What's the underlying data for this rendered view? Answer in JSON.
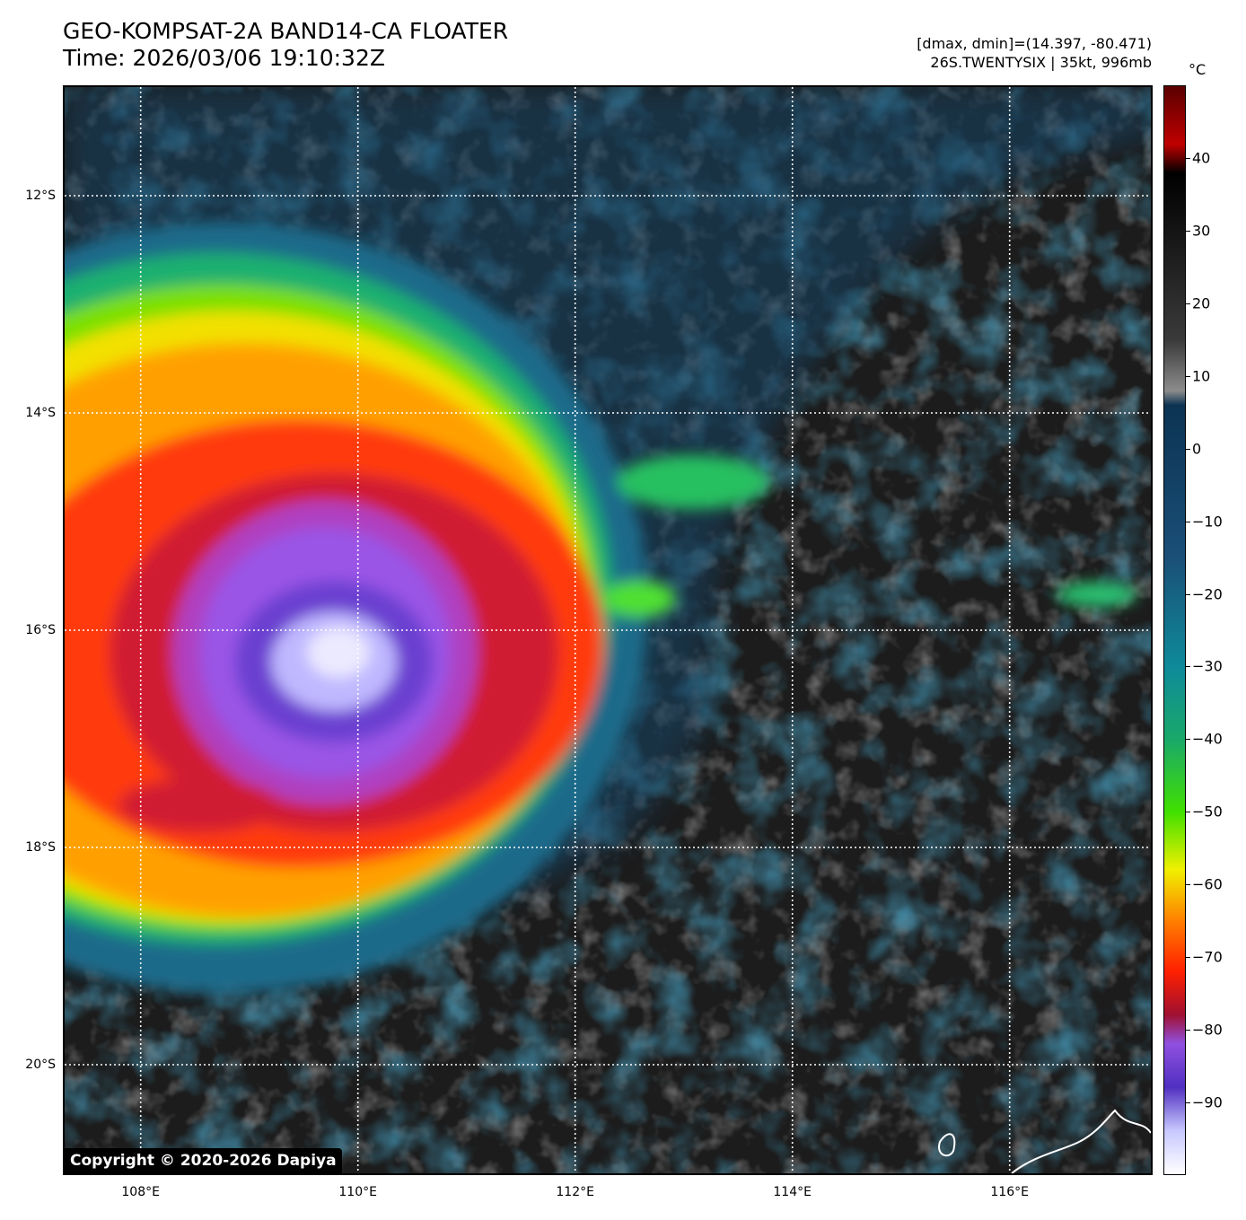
{
  "header": {
    "title_line1": "GEO-KOMPSAT-2A BAND14-CA FLOATER",
    "title_line2": "Time: 2026/03/06 19:10:32Z",
    "meta_line1": "[dmax, dmin]=(14.397, -80.471)",
    "meta_line2": "26S.TWENTYSIX | 35kt, 996mb"
  },
  "map": {
    "copyright": "Copyright © 2020-2026 Dapiya",
    "lat_labels": [
      "12°S",
      "14°S",
      "16°S",
      "18°S",
      "20°S"
    ],
    "lat_values": [
      -12,
      -14,
      -16,
      -18,
      -20
    ],
    "lon_labels": [
      "108°E",
      "110°E",
      "112°E",
      "114°E",
      "116°E"
    ],
    "lon_values": [
      108,
      110,
      112,
      114,
      116
    ],
    "lon_range": [
      107.3,
      117.3
    ],
    "lat_range": [
      -11.0,
      -21.0
    ],
    "storm_center": {
      "lon": 110.0,
      "lat": -16.2
    }
  },
  "colorbar": {
    "unit": "°C",
    "ticks": [
      "40",
      "30",
      "20",
      "10",
      "0",
      "−10",
      "−20",
      "−30",
      "−40",
      "−50",
      "−60",
      "−70",
      "−80",
      "−90"
    ],
    "tick_values": [
      40,
      30,
      20,
      10,
      0,
      -10,
      -20,
      -30,
      -40,
      -50,
      -60,
      -70,
      -80,
      -90
    ],
    "range": [
      50,
      -100
    ],
    "stops": [
      {
        "v": 50,
        "c": "#5a0000"
      },
      {
        "v": 42,
        "c": "#c00000"
      },
      {
        "v": 38,
        "c": "#000000"
      },
      {
        "v": 15,
        "c": "#3a3a3a"
      },
      {
        "v": 8,
        "c": "#8c8c8c"
      },
      {
        "v": 6,
        "c": "#0c3352"
      },
      {
        "v": -15,
        "c": "#1a4f78"
      },
      {
        "v": -30,
        "c": "#0e8a9a"
      },
      {
        "v": -40,
        "c": "#1aa86a"
      },
      {
        "v": -50,
        "c": "#40e000"
      },
      {
        "v": -58,
        "c": "#f0f000"
      },
      {
        "v": -65,
        "c": "#ff8000"
      },
      {
        "v": -72,
        "c": "#ff2000"
      },
      {
        "v": -78,
        "c": "#a01030"
      },
      {
        "v": -82,
        "c": "#9050e0"
      },
      {
        "v": -88,
        "c": "#5030c0"
      },
      {
        "v": -94,
        "c": "#c8c8ff"
      },
      {
        "v": -100,
        "c": "#ffffff"
      }
    ]
  }
}
